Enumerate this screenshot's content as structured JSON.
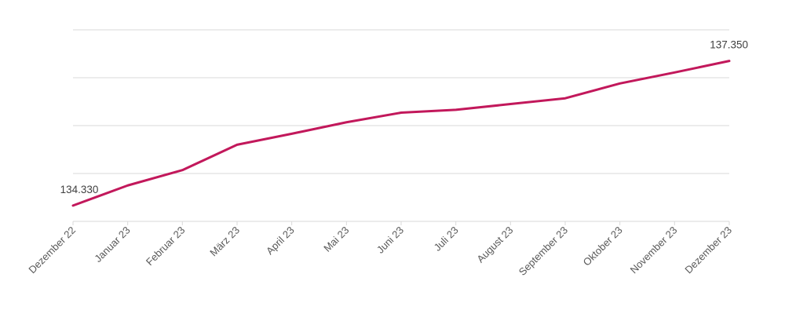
{
  "chart_data": {
    "type": "line",
    "title": "",
    "xlabel": "",
    "ylabel": "",
    "categories": [
      "Dezember 22",
      "Januar 23",
      "Februar 23",
      "März 23",
      "April 23",
      "Mai 23",
      "Juni 23",
      "Juli 23",
      "August 23",
      "September 23",
      "Oktober 23",
      "November 23",
      "Dezember 23"
    ],
    "series": [
      {
        "values": [
          134330,
          134750,
          135070,
          135600,
          135830,
          136070,
          136270,
          136330,
          136450,
          136570,
          136880,
          137110,
          137350
        ]
      }
    ],
    "data_labels": [
      {
        "index": 0,
        "text": "134.330"
      },
      {
        "index": 12,
        "text": "137.350"
      }
    ],
    "ylim": [
      134000,
      138000
    ],
    "y_gridlines": [
      135000,
      136000,
      137000,
      138000
    ],
    "y_axis_labels_shown": false,
    "legend": "none",
    "grid": true,
    "colors": {
      "line": "#c2185b",
      "grid": "#d9d9d9",
      "tick_text": "#595959",
      "label_text": "#404040"
    }
  }
}
